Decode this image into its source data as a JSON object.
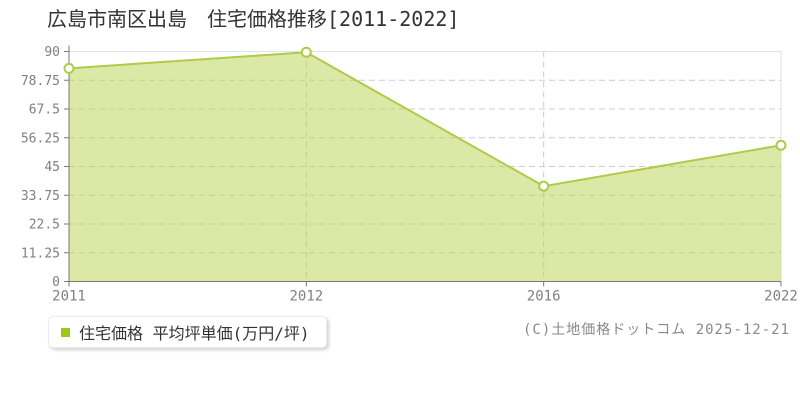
{
  "chart_data": {
    "type": "area",
    "title": "広島市南区出島　住宅価格推移[2011-2022]",
    "categories": [
      "2011",
      "2012",
      "2016",
      "2022"
    ],
    "series": [
      {
        "name": "住宅価格",
        "values": [
          83.4,
          89.7,
          37.3,
          53.3
        ]
      }
    ],
    "xlabel": "",
    "ylabel": "",
    "ylim": [
      0,
      90
    ],
    "yticks": [
      0,
      11.25,
      22.5,
      33.75,
      45,
      56.25,
      67.5,
      78.75,
      90
    ],
    "grid": true,
    "grid_style": "dashed",
    "legend_position": "bottom-left",
    "colors": {
      "line": "#aecb4a",
      "fill": "#b9d34d",
      "fill_opacity": 0.5,
      "marker_fill": "#ffffff",
      "grid": "#cccccc",
      "axis": "#787878",
      "border": "#e2e2e2",
      "tick_text": "#808080",
      "legend_marker": "#9fc715",
      "title_text": "#333333",
      "copyright_text": "#888888"
    }
  },
  "legend": {
    "label": "住宅価格 平均坪単価(万円/坪)"
  },
  "footer": {
    "copyright": "(C)土地価格ドットコム 2025-12-21"
  }
}
